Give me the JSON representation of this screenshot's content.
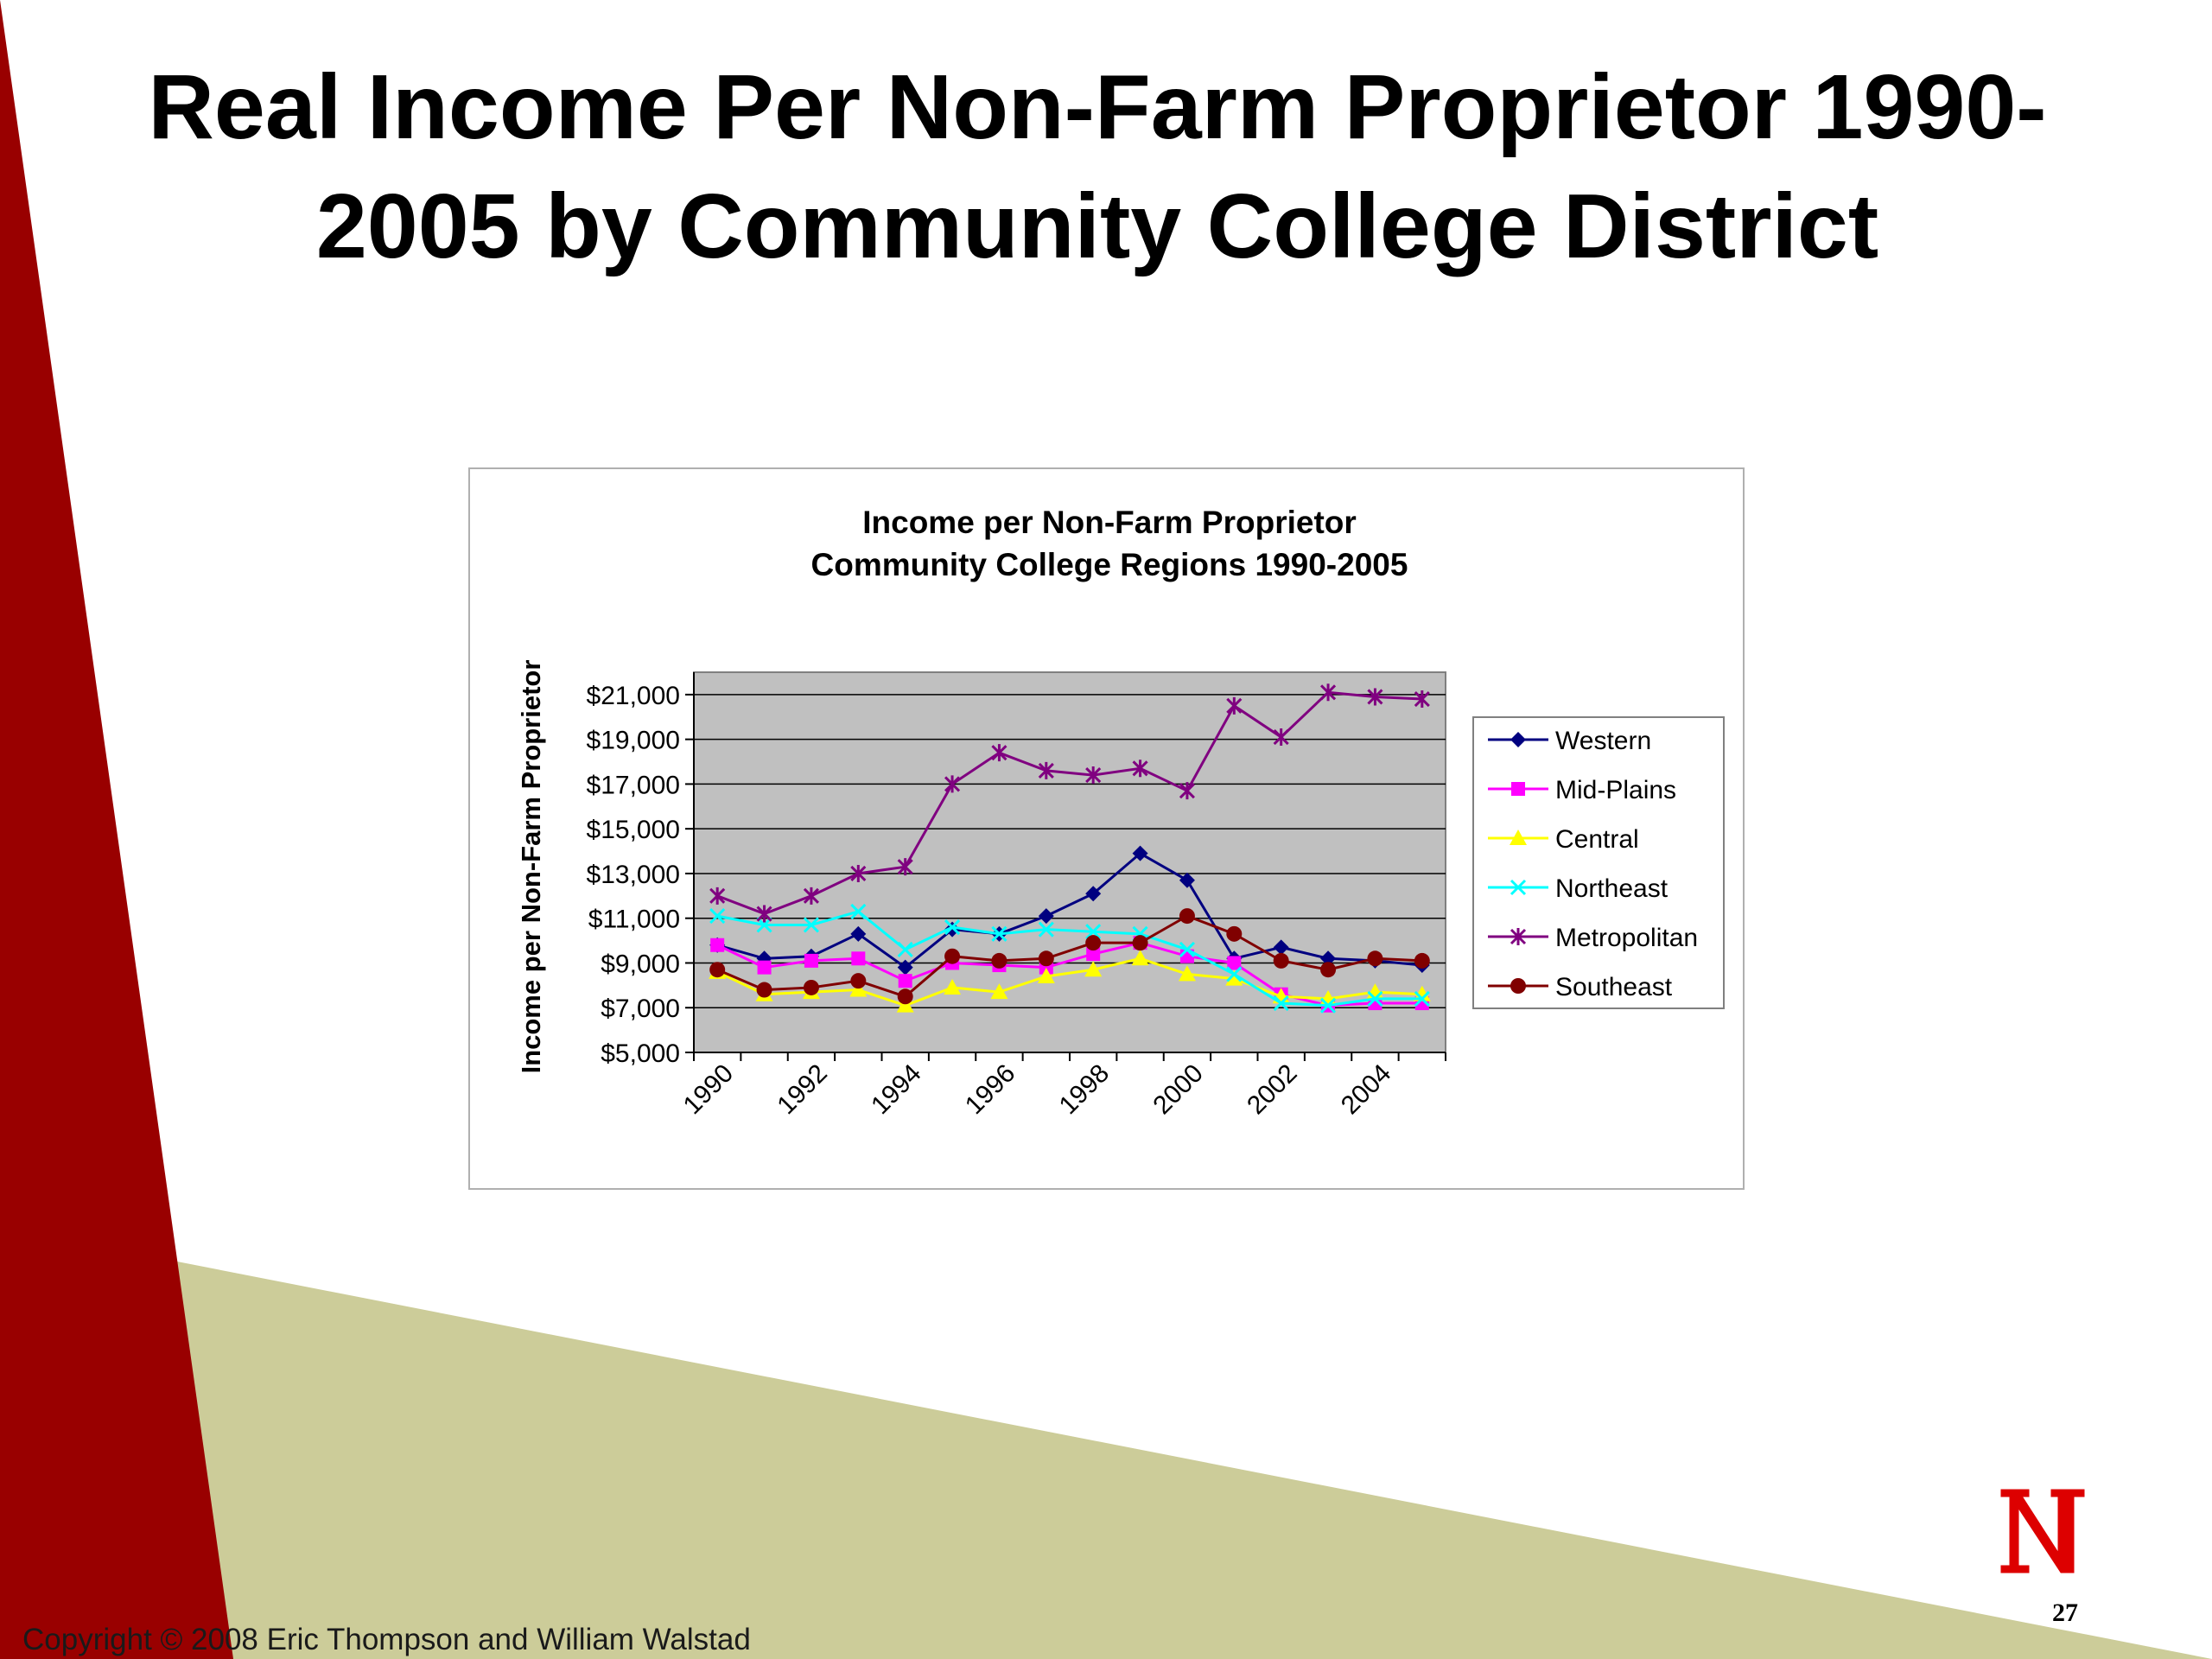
{
  "slide": {
    "title_line1": "Real Income Per Non-Farm Proprietor 1990-",
    "title_line2": "2005 by Community College District",
    "copyright": "Copyright © 2008 Eric Thompson and William Walstad",
    "page_number": "27",
    "logo_icon": "nebraska-n-icon",
    "colors": {
      "red": "#990000",
      "khaki": "#cccc99",
      "plot_bg": "#c0c0c0"
    }
  },
  "chart_data": {
    "type": "line",
    "title": "Income per Non-Farm Proprietor",
    "subtitle": "Community College Regions 1990-2005",
    "xlabel": "",
    "ylabel": "Income per Non-Farm Proprietor",
    "ylim": [
      5000,
      22000
    ],
    "yticks": [
      5000,
      7000,
      9000,
      11000,
      13000,
      15000,
      17000,
      19000,
      21000
    ],
    "ytick_labels": [
      "$5,000",
      "$7,000",
      "$9,000",
      "$11,000",
      "$13,000",
      "$15,000",
      "$17,000",
      "$19,000",
      "$21,000"
    ],
    "x": [
      1990,
      1991,
      1992,
      1993,
      1994,
      1995,
      1996,
      1997,
      1998,
      1999,
      2000,
      2001,
      2002,
      2003,
      2004,
      2005
    ],
    "xtick_labels": [
      "1990",
      "1992",
      "1994",
      "1996",
      "1998",
      "2000",
      "2002",
      "2004"
    ],
    "grid": true,
    "legend_position": "right",
    "series": [
      {
        "name": "Western",
        "color": "#000080",
        "marker": "diamond",
        "values": [
          9800,
          9200,
          9300,
          10300,
          8800,
          10500,
          10300,
          11100,
          12100,
          13900,
          12700,
          9200,
          9700,
          9200,
          9100,
          8900
        ]
      },
      {
        "name": "Mid-Plains",
        "color": "#ff00ff",
        "marker": "square",
        "values": [
          9800,
          8800,
          9100,
          9200,
          8200,
          9000,
          8900,
          8800,
          9400,
          9900,
          9300,
          9000,
          7600,
          7100,
          7200,
          7200
        ]
      },
      {
        "name": "Central",
        "color": "#ffff00",
        "marker": "triangle",
        "values": [
          8600,
          7600,
          7700,
          7800,
          7100,
          7900,
          7700,
          8400,
          8700,
          9200,
          8500,
          8300,
          7500,
          7400,
          7700,
          7600
        ]
      },
      {
        "name": "Northeast",
        "color": "#00ffff",
        "marker": "x",
        "values": [
          11100,
          10700,
          10700,
          11300,
          9600,
          10600,
          10300,
          10500,
          10400,
          10300,
          9600,
          8500,
          7200,
          7100,
          7400,
          7400
        ]
      },
      {
        "name": "Metropolitan",
        "color": "#800080",
        "marker": "star",
        "values": [
          12000,
          11200,
          12000,
          13000,
          13300,
          17000,
          18400,
          17600,
          17400,
          17700,
          16700,
          20500,
          19100,
          21100,
          20900,
          20800
        ]
      },
      {
        "name": "Southeast",
        "color": "#800000",
        "marker": "circle",
        "values": [
          8700,
          7800,
          7900,
          8200,
          7500,
          9300,
          9100,
          9200,
          9900,
          9900,
          11100,
          10300,
          9100,
          8700,
          9200,
          9100
        ]
      }
    ]
  }
}
